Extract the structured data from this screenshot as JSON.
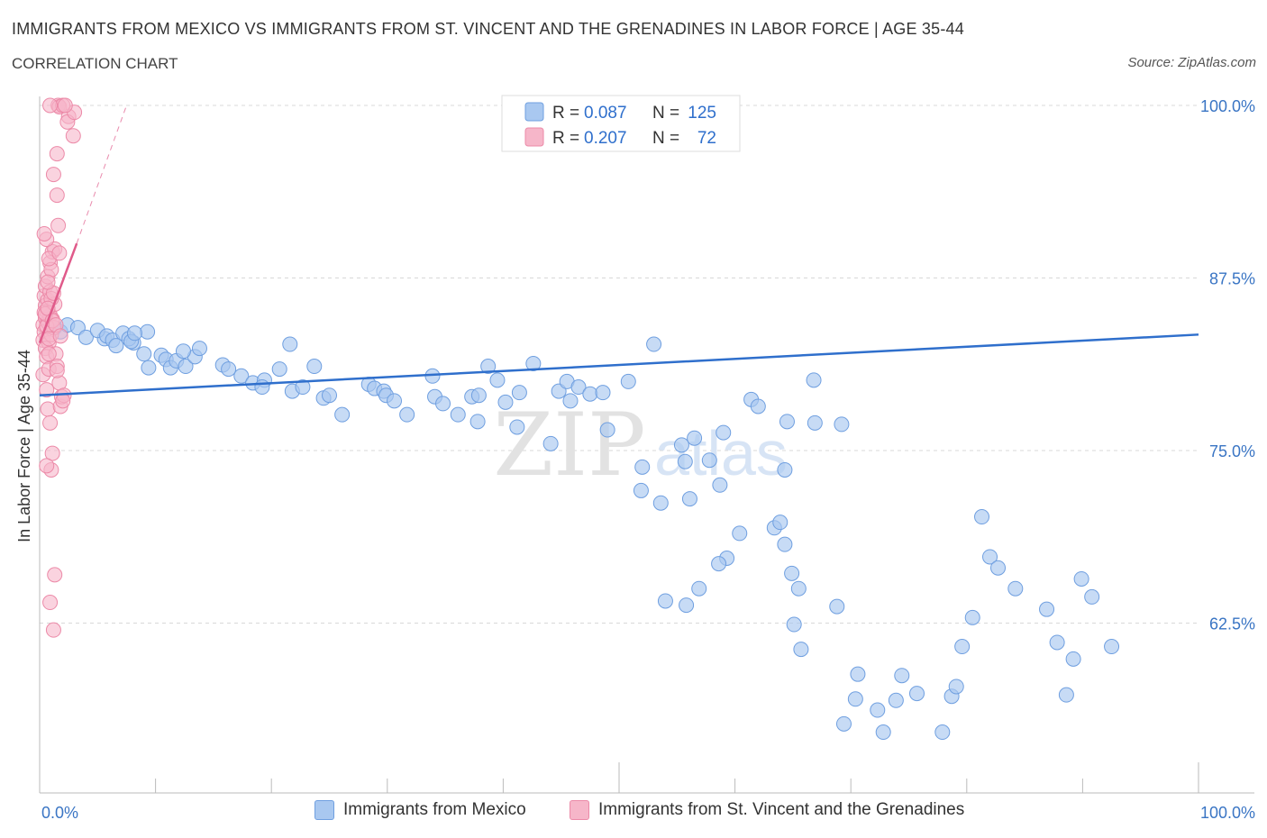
{
  "header": {
    "title": "IMMIGRANTS FROM MEXICO VS IMMIGRANTS FROM ST. VINCENT AND THE GRENADINES IN LABOR FORCE | AGE 35-44",
    "subtitle": "CORRELATION CHART",
    "source": "Source: ZipAtlas.com"
  },
  "watermark": {
    "zip": "ZIP",
    "atlas": "atlas"
  },
  "legend_stats": [
    {
      "r_label": "R =",
      "r_value": "0.087",
      "n_label": "N =",
      "n_value": "125"
    },
    {
      "r_label": "R =",
      "r_value": "0.207",
      "n_label": "N =",
      "n_value": "72"
    }
  ],
  "colors": {
    "blue_fill": "#a9c8f0",
    "blue_stroke": "#6f9fe0",
    "blue_line": "#2f6fcc",
    "pink_fill": "#f6b6c9",
    "pink_stroke": "#ec8aa8",
    "pink_line": "#e05a8a",
    "axis_text": "#3a75c4",
    "grid": "#d8d8d8"
  },
  "chart_data": {
    "type": "scatter",
    "xlabel": "",
    "ylabel": "In Labor Force | Age 35-44",
    "xlim": [
      0,
      100
    ],
    "ylim": [
      50,
      100
    ],
    "x_tick_labels": [
      {
        "value": 0,
        "label": "0.0%"
      },
      {
        "value": 100,
        "label": "100.0%"
      }
    ],
    "y_tick_labels": [
      {
        "value": 100,
        "label": "100.0%"
      },
      {
        "value": 87.5,
        "label": "87.5%"
      },
      {
        "value": 75,
        "label": "75.0%"
      },
      {
        "value": 62.5,
        "label": "62.5%"
      }
    ],
    "grid": "horizontal dashed",
    "legend": "top-center",
    "series": [
      {
        "name": "Immigrants from Mexico",
        "color": "#a9c8f0",
        "trend": {
          "x": [
            0,
            100
          ],
          "y": [
            79.0,
            83.4
          ]
        },
        "points": [
          [
            0.8,
            84.2
          ],
          [
            1.3,
            83.9
          ],
          [
            1.8,
            83.6
          ],
          [
            2.4,
            84.1
          ],
          [
            3.3,
            83.9
          ],
          [
            4.0,
            83.2
          ],
          [
            5.6,
            83.1
          ],
          [
            5.0,
            83.7
          ],
          [
            5.8,
            83.3
          ],
          [
            6.3,
            83.0
          ],
          [
            7.2,
            83.5
          ],
          [
            8.1,
            82.8
          ],
          [
            6.6,
            82.6
          ],
          [
            7.7,
            83.1
          ],
          [
            7.9,
            82.9
          ],
          [
            9.3,
            83.6
          ],
          [
            8.2,
            83.5
          ],
          [
            9.0,
            82.0
          ],
          [
            10.5,
            81.9
          ],
          [
            10.9,
            81.6
          ],
          [
            11.3,
            81.0
          ],
          [
            11.8,
            81.5
          ],
          [
            9.4,
            81.0
          ],
          [
            12.6,
            81.1
          ],
          [
            13.4,
            81.8
          ],
          [
            13.8,
            82.4
          ],
          [
            12.4,
            82.2
          ],
          [
            15.8,
            81.2
          ],
          [
            16.3,
            80.9
          ],
          [
            17.4,
            80.4
          ],
          [
            18.4,
            79.9
          ],
          [
            19.4,
            80.1
          ],
          [
            20.7,
            80.9
          ],
          [
            21.6,
            82.7
          ],
          [
            19.2,
            79.6
          ],
          [
            21.8,
            79.3
          ],
          [
            22.7,
            79.6
          ],
          [
            23.7,
            81.1
          ],
          [
            24.5,
            78.8
          ],
          [
            25.0,
            79.0
          ],
          [
            26.1,
            77.6
          ],
          [
            28.4,
            79.8
          ],
          [
            28.9,
            79.5
          ],
          [
            29.7,
            79.3
          ],
          [
            29.9,
            79.0
          ],
          [
            30.6,
            78.6
          ],
          [
            31.7,
            77.6
          ],
          [
            33.9,
            80.4
          ],
          [
            34.1,
            78.9
          ],
          [
            34.8,
            78.4
          ],
          [
            36.1,
            77.6
          ],
          [
            37.3,
            78.9
          ],
          [
            37.8,
            77.1
          ],
          [
            37.9,
            79.0
          ],
          [
            38.7,
            81.1
          ],
          [
            39.5,
            80.1
          ],
          [
            40.2,
            78.5
          ],
          [
            41.4,
            79.2
          ],
          [
            41.2,
            76.7
          ],
          [
            42.6,
            81.3
          ],
          [
            44.1,
            75.5
          ],
          [
            44.8,
            79.3
          ],
          [
            45.5,
            80.0
          ],
          [
            45.8,
            78.6
          ],
          [
            46.5,
            79.6
          ],
          [
            47.5,
            79.1
          ],
          [
            48.6,
            79.2
          ],
          [
            49.0,
            76.5
          ],
          [
            50.8,
            80.0
          ],
          [
            52.0,
            73.8
          ],
          [
            51.9,
            72.1
          ],
          [
            53.6,
            71.2
          ],
          [
            53.0,
            82.7
          ],
          [
            55.4,
            75.4
          ],
          [
            55.7,
            74.2
          ],
          [
            56.1,
            71.5
          ],
          [
            59.0,
            76.3
          ],
          [
            56.5,
            75.9
          ],
          [
            57.8,
            74.3
          ],
          [
            58.7,
            72.5
          ],
          [
            59.3,
            67.2
          ],
          [
            61.4,
            78.7
          ],
          [
            62.0,
            78.2
          ],
          [
            63.4,
            69.4
          ],
          [
            63.9,
            69.8
          ],
          [
            64.3,
            73.6
          ],
          [
            64.3,
            68.2
          ],
          [
            64.5,
            77.1
          ],
          [
            64.9,
            66.1
          ],
          [
            65.5,
            65.0
          ],
          [
            65.1,
            62.4
          ],
          [
            65.7,
            60.6
          ],
          [
            66.8,
            80.1
          ],
          [
            68.8,
            63.7
          ],
          [
            66.9,
            77.0
          ],
          [
            69.2,
            76.9
          ],
          [
            69.4,
            55.2
          ],
          [
            70.4,
            57.0
          ],
          [
            70.6,
            58.8
          ],
          [
            72.8,
            54.6
          ],
          [
            72.3,
            56.2
          ],
          [
            73.9,
            56.9
          ],
          [
            74.4,
            58.7
          ],
          [
            75.7,
            57.4
          ],
          [
            77.9,
            54.6
          ],
          [
            78.7,
            57.2
          ],
          [
            79.1,
            57.9
          ],
          [
            79.6,
            60.8
          ],
          [
            80.5,
            62.9
          ],
          [
            81.3,
            70.2
          ],
          [
            82.0,
            67.3
          ],
          [
            82.7,
            66.5
          ],
          [
            84.2,
            65.0
          ],
          [
            86.9,
            63.5
          ],
          [
            87.8,
            61.1
          ],
          [
            88.6,
            57.3
          ],
          [
            89.2,
            59.9
          ],
          [
            89.9,
            65.7
          ],
          [
            90.8,
            64.4
          ],
          [
            92.5,
            60.8
          ],
          [
            54.0,
            64.1
          ],
          [
            55.8,
            63.8
          ],
          [
            58.6,
            66.8
          ],
          [
            60.4,
            69.0
          ],
          [
            56.9,
            65.0
          ]
        ]
      },
      {
        "name": "Immigrants from St. Vincent and the Grenadines",
        "color": "#f6b6c9",
        "trend": {
          "x": [
            0,
            3.2
          ],
          "y": [
            82.8,
            90.0
          ]
        },
        "trend_extended": {
          "x": [
            3.2,
            7.5
          ],
          "y": [
            90.0,
            100.0
          ]
        },
        "points": [
          [
            0.3,
            84.1
          ],
          [
            0.4,
            83.6
          ],
          [
            0.5,
            84.6
          ],
          [
            0.6,
            85.1
          ],
          [
            0.3,
            83.0
          ],
          [
            0.7,
            84.3
          ],
          [
            0.8,
            82.8
          ],
          [
            0.4,
            86.2
          ],
          [
            0.9,
            84.8
          ],
          [
            1.0,
            83.4
          ],
          [
            0.5,
            82.4
          ],
          [
            1.1,
            84.5
          ],
          [
            0.6,
            81.8
          ],
          [
            1.2,
            83.9
          ],
          [
            0.3,
            80.5
          ],
          [
            0.8,
            80.9
          ],
          [
            1.4,
            82.0
          ],
          [
            0.6,
            79.4
          ],
          [
            1.5,
            81.1
          ],
          [
            1.7,
            79.9
          ],
          [
            0.7,
            78.0
          ],
          [
            1.8,
            78.2
          ],
          [
            0.9,
            77.0
          ],
          [
            1.9,
            78.9
          ],
          [
            1.1,
            74.8
          ],
          [
            1.0,
            73.6
          ],
          [
            0.6,
            73.9
          ],
          [
            1.3,
            66.0
          ],
          [
            0.9,
            64.0
          ],
          [
            1.2,
            62.0
          ],
          [
            0.5,
            86.9
          ],
          [
            0.7,
            87.6
          ],
          [
            0.9,
            88.6
          ],
          [
            1.1,
            89.4
          ],
          [
            1.3,
            89.6
          ],
          [
            0.6,
            90.3
          ],
          [
            0.4,
            90.7
          ],
          [
            1.6,
            91.3
          ],
          [
            1.5,
            93.5
          ],
          [
            1.2,
            95.0
          ],
          [
            1.5,
            96.5
          ],
          [
            2.5,
            99.2
          ],
          [
            2.4,
            98.8
          ],
          [
            2.9,
            97.8
          ],
          [
            3.0,
            99.5
          ],
          [
            1.6,
            100.0
          ],
          [
            1.7,
            99.9
          ],
          [
            2.0,
            100.0
          ],
          [
            2.2,
            100.0
          ],
          [
            0.9,
            100.0
          ],
          [
            0.5,
            85.5
          ],
          [
            0.7,
            85.9
          ],
          [
            0.9,
            86.5
          ],
          [
            0.4,
            85.0
          ],
          [
            1.0,
            88.1
          ],
          [
            0.8,
            88.9
          ],
          [
            1.7,
            89.3
          ],
          [
            0.6,
            84.0
          ],
          [
            0.5,
            84.9
          ],
          [
            0.8,
            83.1
          ],
          [
            1.3,
            85.6
          ],
          [
            1.0,
            86.0
          ],
          [
            0.7,
            85.3
          ],
          [
            1.1,
            84.4
          ],
          [
            1.4,
            84.1
          ],
          [
            1.8,
            83.3
          ],
          [
            0.8,
            82.0
          ],
          [
            1.5,
            80.8
          ],
          [
            2.1,
            79.0
          ],
          [
            2.0,
            78.6
          ],
          [
            1.2,
            86.4
          ],
          [
            0.7,
            87.2
          ]
        ]
      }
    ]
  }
}
